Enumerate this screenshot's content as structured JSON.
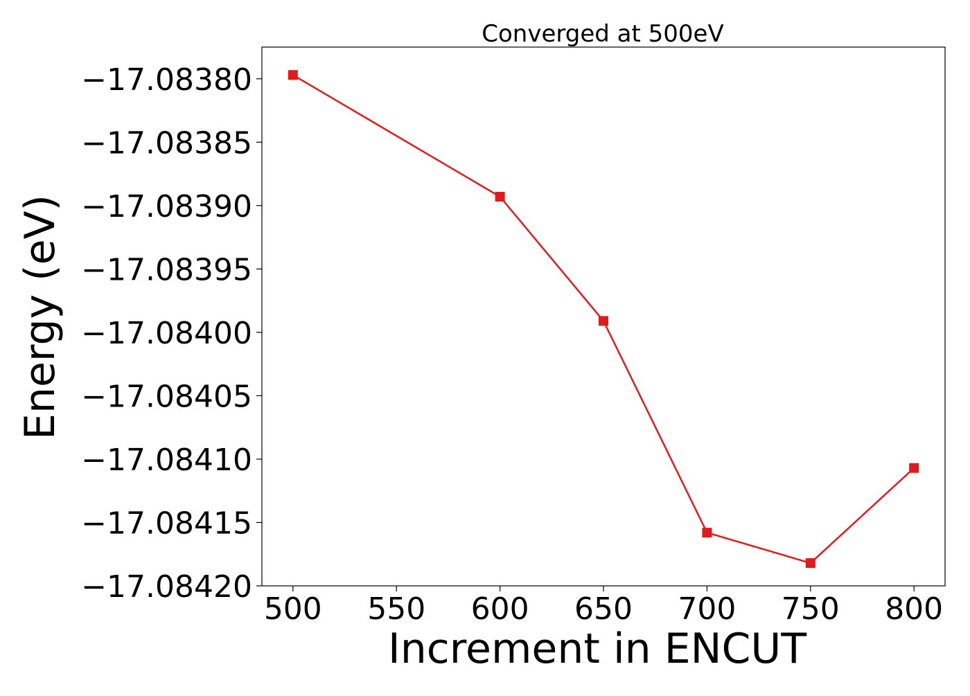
{
  "chart_data": {
    "type": "line",
    "title": "Converged at 500eV",
    "xlabel": "Increment in ENCUT",
    "ylabel": "Energy (eV)",
    "xlim": [
      485,
      815
    ],
    "ylim": [
      -17.0842,
      -17.083775
    ],
    "x_ticks": [
      500,
      550,
      600,
      650,
      700,
      750,
      800
    ],
    "x_tick_labels": [
      "500",
      "550",
      "600",
      "650",
      "700",
      "750",
      "800"
    ],
    "y_ticks": [
      -17.0838,
      -17.08385,
      -17.0839,
      -17.08395,
      -17.084,
      -17.08405,
      -17.0841,
      -17.08415,
      -17.0842
    ],
    "y_tick_labels": [
      "−17.08380",
      "−17.08385",
      "−17.08390",
      "−17.08395",
      "−17.08400",
      "−17.08405",
      "−17.08410",
      "−17.08415",
      "−17.08420"
    ],
    "grid": false,
    "legend": "none",
    "series": [
      {
        "marker": "square",
        "color": "#e31a1c",
        "x": [
          500,
          600,
          650,
          700,
          750,
          800
        ],
        "y": [
          -17.083797,
          -17.083893,
          -17.083991,
          -17.084158,
          -17.084182,
          -17.084107
        ]
      }
    ]
  }
}
